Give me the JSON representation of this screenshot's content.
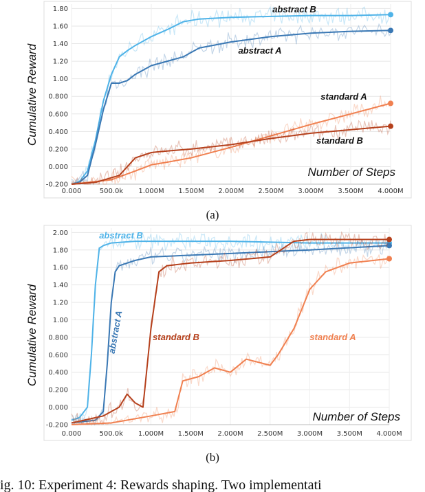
{
  "chart_data": [
    {
      "type": "line",
      "panel_label": "(a)",
      "xlabel": "Number of Steps",
      "ylabel": "Cumulative Reward",
      "xlim": [
        0,
        4000000
      ],
      "ylim": [
        -0.2,
        1.85
      ],
      "x_ticks": [
        {
          "v": 0,
          "label": "0.000"
        },
        {
          "v": 500000,
          "label": "500.0k"
        },
        {
          "v": 1000000,
          "label": "1.000M"
        },
        {
          "v": 1500000,
          "label": "1.500M"
        },
        {
          "v": 2000000,
          "label": "2.000M"
        },
        {
          "v": 2500000,
          "label": "2.500M"
        },
        {
          "v": 3000000,
          "label": "3.000M"
        },
        {
          "v": 3500000,
          "label": "3.500M"
        },
        {
          "v": 4000000,
          "label": "4.000M"
        }
      ],
      "y_ticks": [
        {
          "v": -0.2,
          "label": "-0.200"
        },
        {
          "v": 0.0,
          "label": "0.000"
        },
        {
          "v": 0.2,
          "label": "0.200"
        },
        {
          "v": 0.4,
          "label": "0.400"
        },
        {
          "v": 0.6,
          "label": "0.600"
        },
        {
          "v": 0.8,
          "label": "0.800"
        },
        {
          "v": 1.0,
          "label": "1.00"
        },
        {
          "v": 1.2,
          "label": "1.20"
        },
        {
          "v": 1.4,
          "label": "1.40"
        },
        {
          "v": 1.6,
          "label": "1.60"
        },
        {
          "v": 1.8,
          "label": "1.80"
        }
      ],
      "series": [
        {
          "name": "abstract B",
          "color": "#4fb3e8",
          "x": [
            0,
            100000,
            200000,
            300000,
            400000,
            500000,
            600000,
            700000,
            800000,
            900000,
            1000000,
            1200000,
            1400000,
            1600000,
            2000000,
            2500000,
            3000000,
            3500000,
            4000000
          ],
          "y": [
            -0.2,
            -0.17,
            -0.05,
            0.3,
            0.75,
            1.05,
            1.25,
            1.32,
            1.38,
            1.43,
            1.48,
            1.56,
            1.65,
            1.68,
            1.7,
            1.71,
            1.72,
            1.72,
            1.73
          ]
        },
        {
          "name": "abstract A",
          "color": "#3a78b4",
          "x": [
            0,
            100000,
            200000,
            300000,
            400000,
            500000,
            600000,
            700000,
            800000,
            900000,
            1000000,
            1200000,
            1400000,
            1600000,
            2000000,
            2500000,
            3000000,
            3500000,
            4000000
          ],
          "y": [
            -0.2,
            -0.18,
            -0.1,
            0.25,
            0.65,
            0.95,
            0.95,
            0.98,
            1.05,
            1.1,
            1.15,
            1.2,
            1.25,
            1.35,
            1.42,
            1.48,
            1.52,
            1.54,
            1.55
          ]
        },
        {
          "name": "standard A",
          "color": "#f08050",
          "x": [
            0,
            500000,
            800000,
            1000000,
            1200000,
            1500000,
            2000000,
            2500000,
            3000000,
            3500000,
            4000000
          ],
          "y": [
            -0.2,
            -0.15,
            -0.05,
            0.02,
            0.05,
            0.1,
            0.22,
            0.35,
            0.48,
            0.6,
            0.72
          ]
        },
        {
          "name": "standard B",
          "color": "#b5401c",
          "x": [
            0,
            300000,
            600000,
            800000,
            1000000,
            1100000,
            1500000,
            2000000,
            2500000,
            3000000,
            3500000,
            4000000
          ],
          "y": [
            -0.2,
            -0.18,
            -0.1,
            0.1,
            0.16,
            0.17,
            0.2,
            0.25,
            0.32,
            0.38,
            0.42,
            0.46
          ]
        }
      ],
      "annotations": [
        {
          "text": "abstract B",
          "series": "abstract B"
        },
        {
          "text": "abstract A",
          "series": "abstract A"
        },
        {
          "text": "standard A",
          "series": "standard A"
        },
        {
          "text": "standard B",
          "series": "standard B"
        }
      ]
    },
    {
      "type": "line",
      "panel_label": "(b)",
      "xlabel": "Number of Steps",
      "ylabel": "Cumulative Reward",
      "xlim": [
        0,
        4000000
      ],
      "ylim": [
        -0.2,
        2.05
      ],
      "x_ticks": [
        {
          "v": 0,
          "label": "0.000"
        },
        {
          "v": 500000,
          "label": "500.0k"
        },
        {
          "v": 1000000,
          "label": "1.000M"
        },
        {
          "v": 1500000,
          "label": "1.500M"
        },
        {
          "v": 2000000,
          "label": "2.000M"
        },
        {
          "v": 2500000,
          "label": "2.500M"
        },
        {
          "v": 3000000,
          "label": "3.000M"
        },
        {
          "v": 3500000,
          "label": "3.500M"
        },
        {
          "v": 4000000,
          "label": "4.000M"
        }
      ],
      "y_ticks": [
        {
          "v": -0.2,
          "label": "-0.200"
        },
        {
          "v": 0.0,
          "label": "0.000"
        },
        {
          "v": 0.2,
          "label": "0.200"
        },
        {
          "v": 0.4,
          "label": "0.400"
        },
        {
          "v": 0.6,
          "label": "0.600"
        },
        {
          "v": 0.8,
          "label": "0.800"
        },
        {
          "v": 1.0,
          "label": "1.00"
        },
        {
          "v": 1.2,
          "label": "1.20"
        },
        {
          "v": 1.4,
          "label": "1.40"
        },
        {
          "v": 1.6,
          "label": "1.60"
        },
        {
          "v": 1.8,
          "label": "1.80"
        },
        {
          "v": 2.0,
          "label": "2.00"
        }
      ],
      "series": [
        {
          "name": "abstract B",
          "color": "#4fb3e8",
          "x": [
            0,
            100000,
            200000,
            250000,
            300000,
            350000,
            400000,
            500000,
            800000,
            1200000,
            2000000,
            3000000,
            4000000
          ],
          "y": [
            -0.15,
            -0.12,
            0.0,
            0.6,
            1.4,
            1.82,
            1.85,
            1.88,
            1.9,
            1.9,
            1.9,
            1.88,
            1.88
          ]
        },
        {
          "name": "abstract A",
          "color": "#3a78b4",
          "x": [
            0,
            300000,
            400000,
            450000,
            500000,
            550000,
            600000,
            800000,
            1000000,
            1500000,
            2000000,
            2500000,
            3000000,
            4000000
          ],
          "y": [
            -0.18,
            -0.15,
            -0.05,
            0.5,
            1.2,
            1.55,
            1.62,
            1.68,
            1.72,
            1.74,
            1.76,
            1.78,
            1.8,
            1.85
          ]
        },
        {
          "name": "standard B",
          "color": "#b5401c",
          "x": [
            0,
            400000,
            600000,
            700000,
            800000,
            900000,
            1000000,
            1100000,
            1200000,
            1500000,
            2000000,
            2500000,
            2800000,
            3000000,
            4000000
          ],
          "y": [
            -0.18,
            -0.1,
            0.0,
            0.15,
            0.05,
            0.0,
            0.9,
            1.55,
            1.62,
            1.65,
            1.68,
            1.72,
            1.9,
            1.92,
            1.92
          ]
        },
        {
          "name": "standard A",
          "color": "#f08050",
          "x": [
            0,
            500000,
            1000000,
            1300000,
            1400000,
            1600000,
            1800000,
            2000000,
            2200000,
            2500000,
            2600000,
            2800000,
            3000000,
            3200000,
            3500000,
            3800000,
            4000000
          ],
          "y": [
            -0.2,
            -0.18,
            -0.1,
            -0.05,
            0.3,
            0.35,
            0.45,
            0.4,
            0.55,
            0.48,
            0.6,
            0.9,
            1.35,
            1.55,
            1.65,
            1.68,
            1.7
          ]
        }
      ],
      "annotations": [
        {
          "text": "abstract B",
          "series": "abstract B"
        },
        {
          "text": "abstract A",
          "series": "abstract A"
        },
        {
          "text": "standard B",
          "series": "standard B"
        },
        {
          "text": "standard A",
          "series": "standard A"
        }
      ]
    }
  ],
  "caption": "ig. 10: Experiment 4: Rewards shaping. Two implementati"
}
